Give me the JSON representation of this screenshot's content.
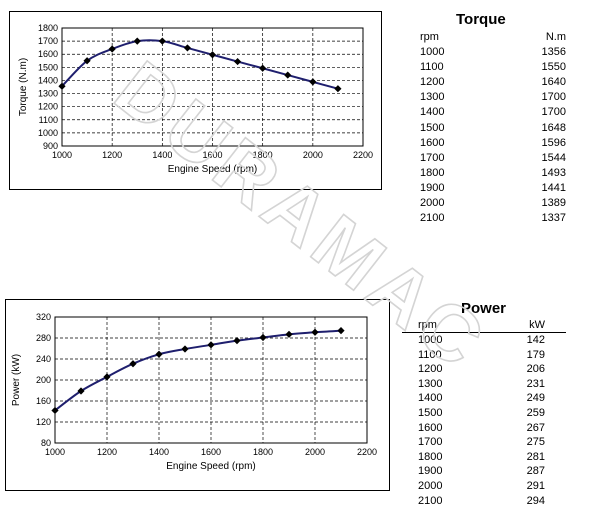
{
  "watermark": "DURAMAC",
  "chart_data": [
    {
      "type": "line",
      "xlabel": "Engine Speed (rpm)",
      "ylabel": "Torque (N.m)",
      "xlim": [
        1000,
        2200
      ],
      "ylim": [
        900,
        1800
      ],
      "xticks": [
        1000,
        1200,
        1400,
        1600,
        1800,
        2000,
        2200
      ],
      "yticks": [
        900,
        1000,
        1100,
        1200,
        1300,
        1400,
        1500,
        1600,
        1700,
        1800
      ],
      "grid": true,
      "series": [
        {
          "x": [
            1000,
            1100,
            1200,
            1300,
            1400,
            1500,
            1600,
            1700,
            1800,
            1900,
            2000,
            2100
          ],
          "y": [
            1356,
            1550,
            1640,
            1700,
            1700,
            1648,
            1596,
            1544,
            1493,
            1441,
            1389,
            1337
          ],
          "color": "#1f1f6e"
        }
      ]
    },
    {
      "type": "line",
      "xlabel": "Engine Speed (rpm)",
      "ylabel": "Power (kW)",
      "xlim": [
        1000,
        2200
      ],
      "ylim": [
        80,
        320
      ],
      "xticks": [
        1000,
        1200,
        1400,
        1600,
        1800,
        2000,
        2200
      ],
      "yticks": [
        80,
        120,
        160,
        200,
        240,
        280,
        320
      ],
      "grid": true,
      "series": [
        {
          "x": [
            1000,
            1100,
            1200,
            1300,
            1400,
            1500,
            1600,
            1700,
            1800,
            1900,
            2000,
            2100
          ],
          "y": [
            142,
            179,
            206,
            231,
            249,
            259,
            267,
            275,
            281,
            287,
            291,
            294
          ],
          "color": "#1f1f6e"
        }
      ]
    }
  ],
  "torque_table": {
    "title": "Torque",
    "col_rpm": "rpm",
    "col_val": "N.m",
    "rows": [
      {
        "rpm": "1000",
        "val": "1356"
      },
      {
        "rpm": "1100",
        "val": "1550"
      },
      {
        "rpm": "1200",
        "val": "1640"
      },
      {
        "rpm": "1300",
        "val": "1700"
      },
      {
        "rpm": "1400",
        "val": "1700"
      },
      {
        "rpm": "1500",
        "val": "1648"
      },
      {
        "rpm": "1600",
        "val": "1596"
      },
      {
        "rpm": "1700",
        "val": "1544"
      },
      {
        "rpm": "1800",
        "val": "1493"
      },
      {
        "rpm": "1900",
        "val": "1441"
      },
      {
        "rpm": "2000",
        "val": "1389"
      },
      {
        "rpm": "2100",
        "val": "1337"
      }
    ]
  },
  "power_table": {
    "title": "Power",
    "col_rpm": "rpm",
    "col_val": "kW",
    "rows": [
      {
        "rpm": "1000",
        "val": "142"
      },
      {
        "rpm": "1100",
        "val": "179"
      },
      {
        "rpm": "1200",
        "val": "206"
      },
      {
        "rpm": "1300",
        "val": "231"
      },
      {
        "rpm": "1400",
        "val": "249"
      },
      {
        "rpm": "1500",
        "val": "259"
      },
      {
        "rpm": "1600",
        "val": "267"
      },
      {
        "rpm": "1700",
        "val": "275"
      },
      {
        "rpm": "1800",
        "val": "281"
      },
      {
        "rpm": "1900",
        "val": "287"
      },
      {
        "rpm": "2000",
        "val": "291"
      },
      {
        "rpm": "2100",
        "val": "294"
      }
    ]
  }
}
